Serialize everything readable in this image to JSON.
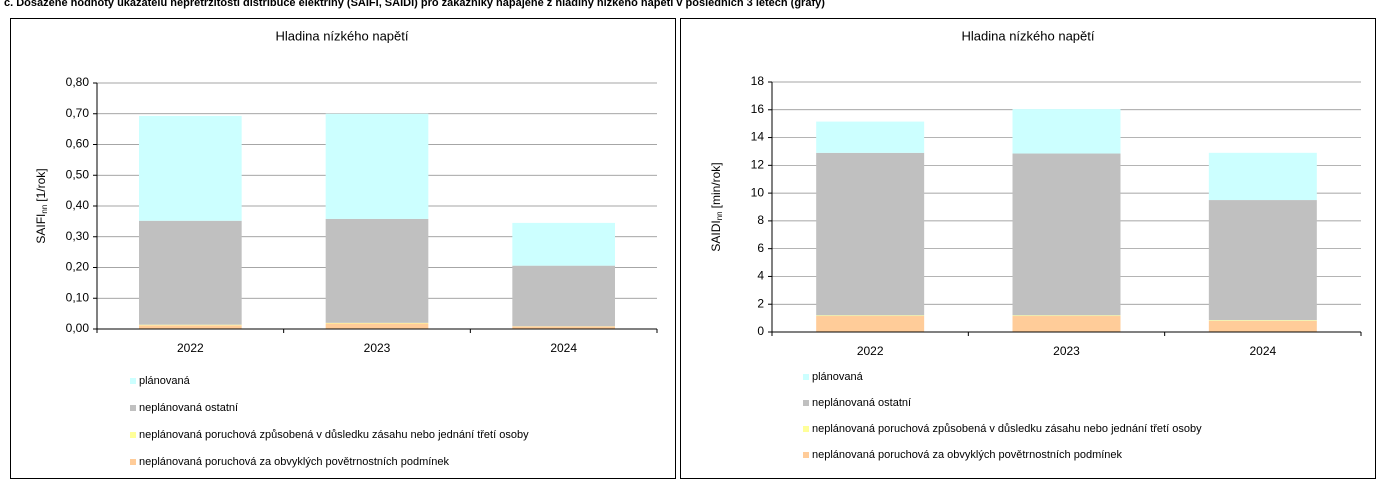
{
  "header": "c. Dosažené hodnoty ukazatelů nepřetržitosti distribuce elektřiny (SAIFI, SAIDI) pro zákazníky napájené z hladiny nízkého napětí v posledních 3 letech (grafy)",
  "chart_data": [
    {
      "type": "bar",
      "stacked": true,
      "title": "Hladina nízkého napětí",
      "ylabel": {
        "main": "SAIFI",
        "sub": "nn",
        "unit": "[1/rok]"
      },
      "categories": [
        "2022",
        "2023",
        "2024"
      ],
      "series": [
        {
          "name": "neplánovaná poruchová za obvyklých povětrnostních podmínek",
          "color": "#ffcc99",
          "values": [
            0.012,
            0.018,
            0.008
          ]
        },
        {
          "name": "neplánovaná poruchová způsobená v důsledku zásahu nebo jednání třetí osoby",
          "color": "#ffff99",
          "values": [
            0.002,
            0.002,
            0.001
          ]
        },
        {
          "name": "neplánovaná ostatní",
          "color": "#c0c0c0",
          "values": [
            0.338,
            0.338,
            0.197
          ]
        },
        {
          "name": "plánovaná",
          "color": "#ccffff",
          "values": [
            0.341,
            0.342,
            0.139
          ]
        }
      ],
      "ylim": [
        0,
        0.8
      ],
      "yticks": [
        {
          "value": 0,
          "label": "0,00"
        },
        {
          "value": 0.1,
          "label": "0,10"
        },
        {
          "value": 0.2,
          "label": "0,20"
        },
        {
          "value": 0.3,
          "label": "0,30"
        },
        {
          "value": 0.4,
          "label": "0,40"
        },
        {
          "value": 0.5,
          "label": "0,50"
        },
        {
          "value": 0.6,
          "label": "0,60"
        },
        {
          "value": 0.7,
          "label": "0,70"
        },
        {
          "value": 0.8,
          "label": "0,80"
        }
      ],
      "grid": true
    },
    {
      "type": "bar",
      "stacked": true,
      "title": "Hladina nízkého napětí",
      "ylabel": {
        "main": "SAIDI",
        "sub": "nn",
        "unit": "[min/rok]"
      },
      "categories": [
        "2022",
        "2023",
        "2024"
      ],
      "series": [
        {
          "name": "neplánovaná poruchová za obvyklých povětrnostních podmínek",
          "color": "#ffcc99",
          "values": [
            1.15,
            1.15,
            0.8
          ]
        },
        {
          "name": "neplánovaná poruchová způsobená v důsledku zásahu nebo jednání třetí osoby",
          "color": "#ffff99",
          "values": [
            0.05,
            0.05,
            0.05
          ]
        },
        {
          "name": "neplánovaná ostatní",
          "color": "#c0c0c0",
          "values": [
            11.7,
            11.65,
            8.65
          ]
        },
        {
          "name": "plánovaná",
          "color": "#ccffff",
          "values": [
            2.25,
            3.2,
            3.4
          ]
        }
      ],
      "ylim": [
        0,
        18
      ],
      "yticks": [
        0,
        2,
        4,
        6,
        8,
        10,
        12,
        14,
        16,
        18
      ],
      "grid": true
    }
  ]
}
